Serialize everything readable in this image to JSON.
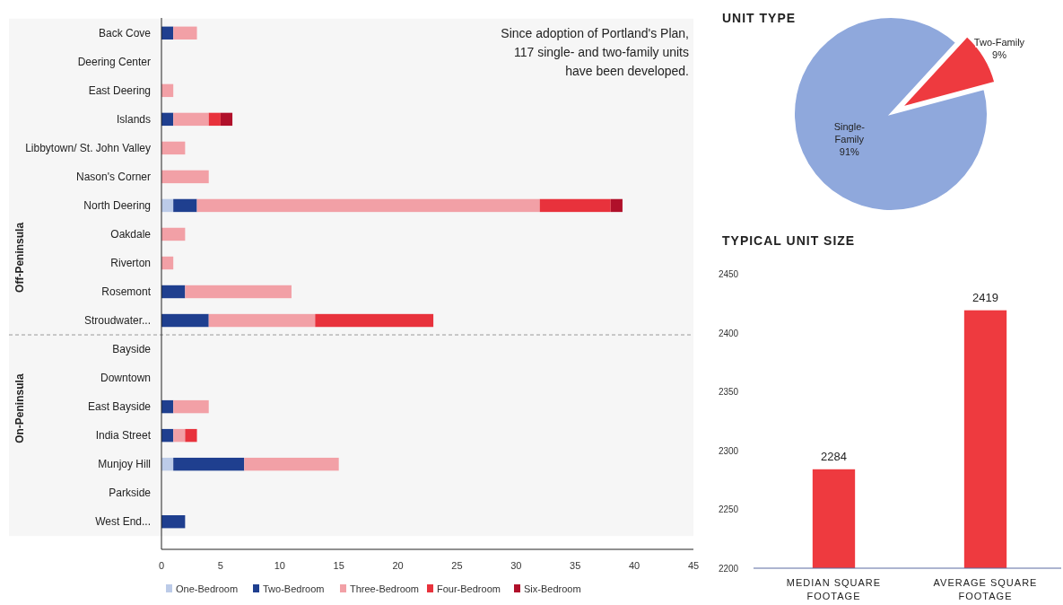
{
  "chart_data": [
    {
      "type": "bar",
      "orientation": "horizontal",
      "stacked": true,
      "categories": [
        "Back Cove",
        "Deering Center",
        "East Deering",
        "Islands",
        "Libbytown/ St. John Valley",
        "Nason's Corner",
        "North Deering",
        "Oakdale",
        "Riverton",
        "Rosemont",
        "Stroudwater...",
        "Bayside",
        "Downtown",
        "East Bayside",
        "India Street",
        "Munjoy Hill",
        "Parkside",
        "West End..."
      ],
      "series": [
        {
          "name": "One-Bedroom",
          "color": "#bccbe8",
          "values": [
            0,
            0,
            0,
            0,
            0,
            0,
            1,
            0,
            0,
            0,
            0,
            0,
            0,
            0,
            0,
            1,
            0,
            0
          ]
        },
        {
          "name": "Two-Bedroom",
          "color": "#1f3f8f",
          "values": [
            1,
            0,
            0,
            1,
            0,
            0,
            2,
            0,
            0,
            2,
            4,
            0,
            0,
            1,
            1,
            6,
            0,
            2
          ]
        },
        {
          "name": "Three-Bedroom",
          "color": "#f2a0a6",
          "values": [
            2,
            0,
            1,
            3,
            2,
            4,
            29,
            2,
            1,
            9,
            9,
            0,
            0,
            3,
            1,
            8,
            0,
            0
          ]
        },
        {
          "name": "Four-Bedroom",
          "color": "#e8323c",
          "values": [
            0,
            0,
            0,
            1,
            0,
            0,
            6,
            0,
            0,
            0,
            10,
            0,
            0,
            0,
            1,
            0,
            0,
            0
          ]
        },
        {
          "name": "Six-Bedroom",
          "color": "#b0102a",
          "values": [
            0,
            0,
            0,
            1,
            0,
            0,
            1,
            0,
            0,
            0,
            0,
            0,
            0,
            0,
            0,
            0,
            0,
            0
          ]
        }
      ],
      "xlim": [
        0,
        45
      ],
      "xticks": [
        0,
        5,
        10,
        15,
        20,
        25,
        30,
        35,
        40,
        45
      ],
      "grid": false,
      "legend": "bottom",
      "bands": [
        {
          "axis": "y",
          "from": "Back Cove",
          "to": "Stroudwater...",
          "label": "Off-Peninsula",
          "color": "#f6f6f6"
        },
        {
          "axis": "y",
          "from": "Bayside",
          "to": "West End...",
          "label": "On-Peninsula",
          "color": "#f6f6f6"
        }
      ],
      "annotations": [
        "Since adoption of Portland's Plan, 117 single- and two-family units have been developed."
      ]
    },
    {
      "type": "pie",
      "title": "UNIT TYPE",
      "categories": [
        "Single-Family",
        "Two-Family"
      ],
      "values": [
        91,
        9
      ],
      "colors": [
        "#8fa8dc",
        "#ee3a3f"
      ],
      "value_labels": [
        "91%",
        "9%"
      ]
    },
    {
      "type": "bar",
      "title": "TYPICAL UNIT SIZE",
      "categories": [
        "MEDIAN SQUARE FOOTAGE",
        "AVERAGE SQUARE FOOTAGE"
      ],
      "values": [
        2284,
        2419
      ],
      "color": "#ee3a3f",
      "ylim": [
        2200,
        2450
      ],
      "yticks": [
        2200,
        2250,
        2300,
        2350,
        2400,
        2450
      ],
      "grid": false,
      "data_labels": true
    }
  ]
}
